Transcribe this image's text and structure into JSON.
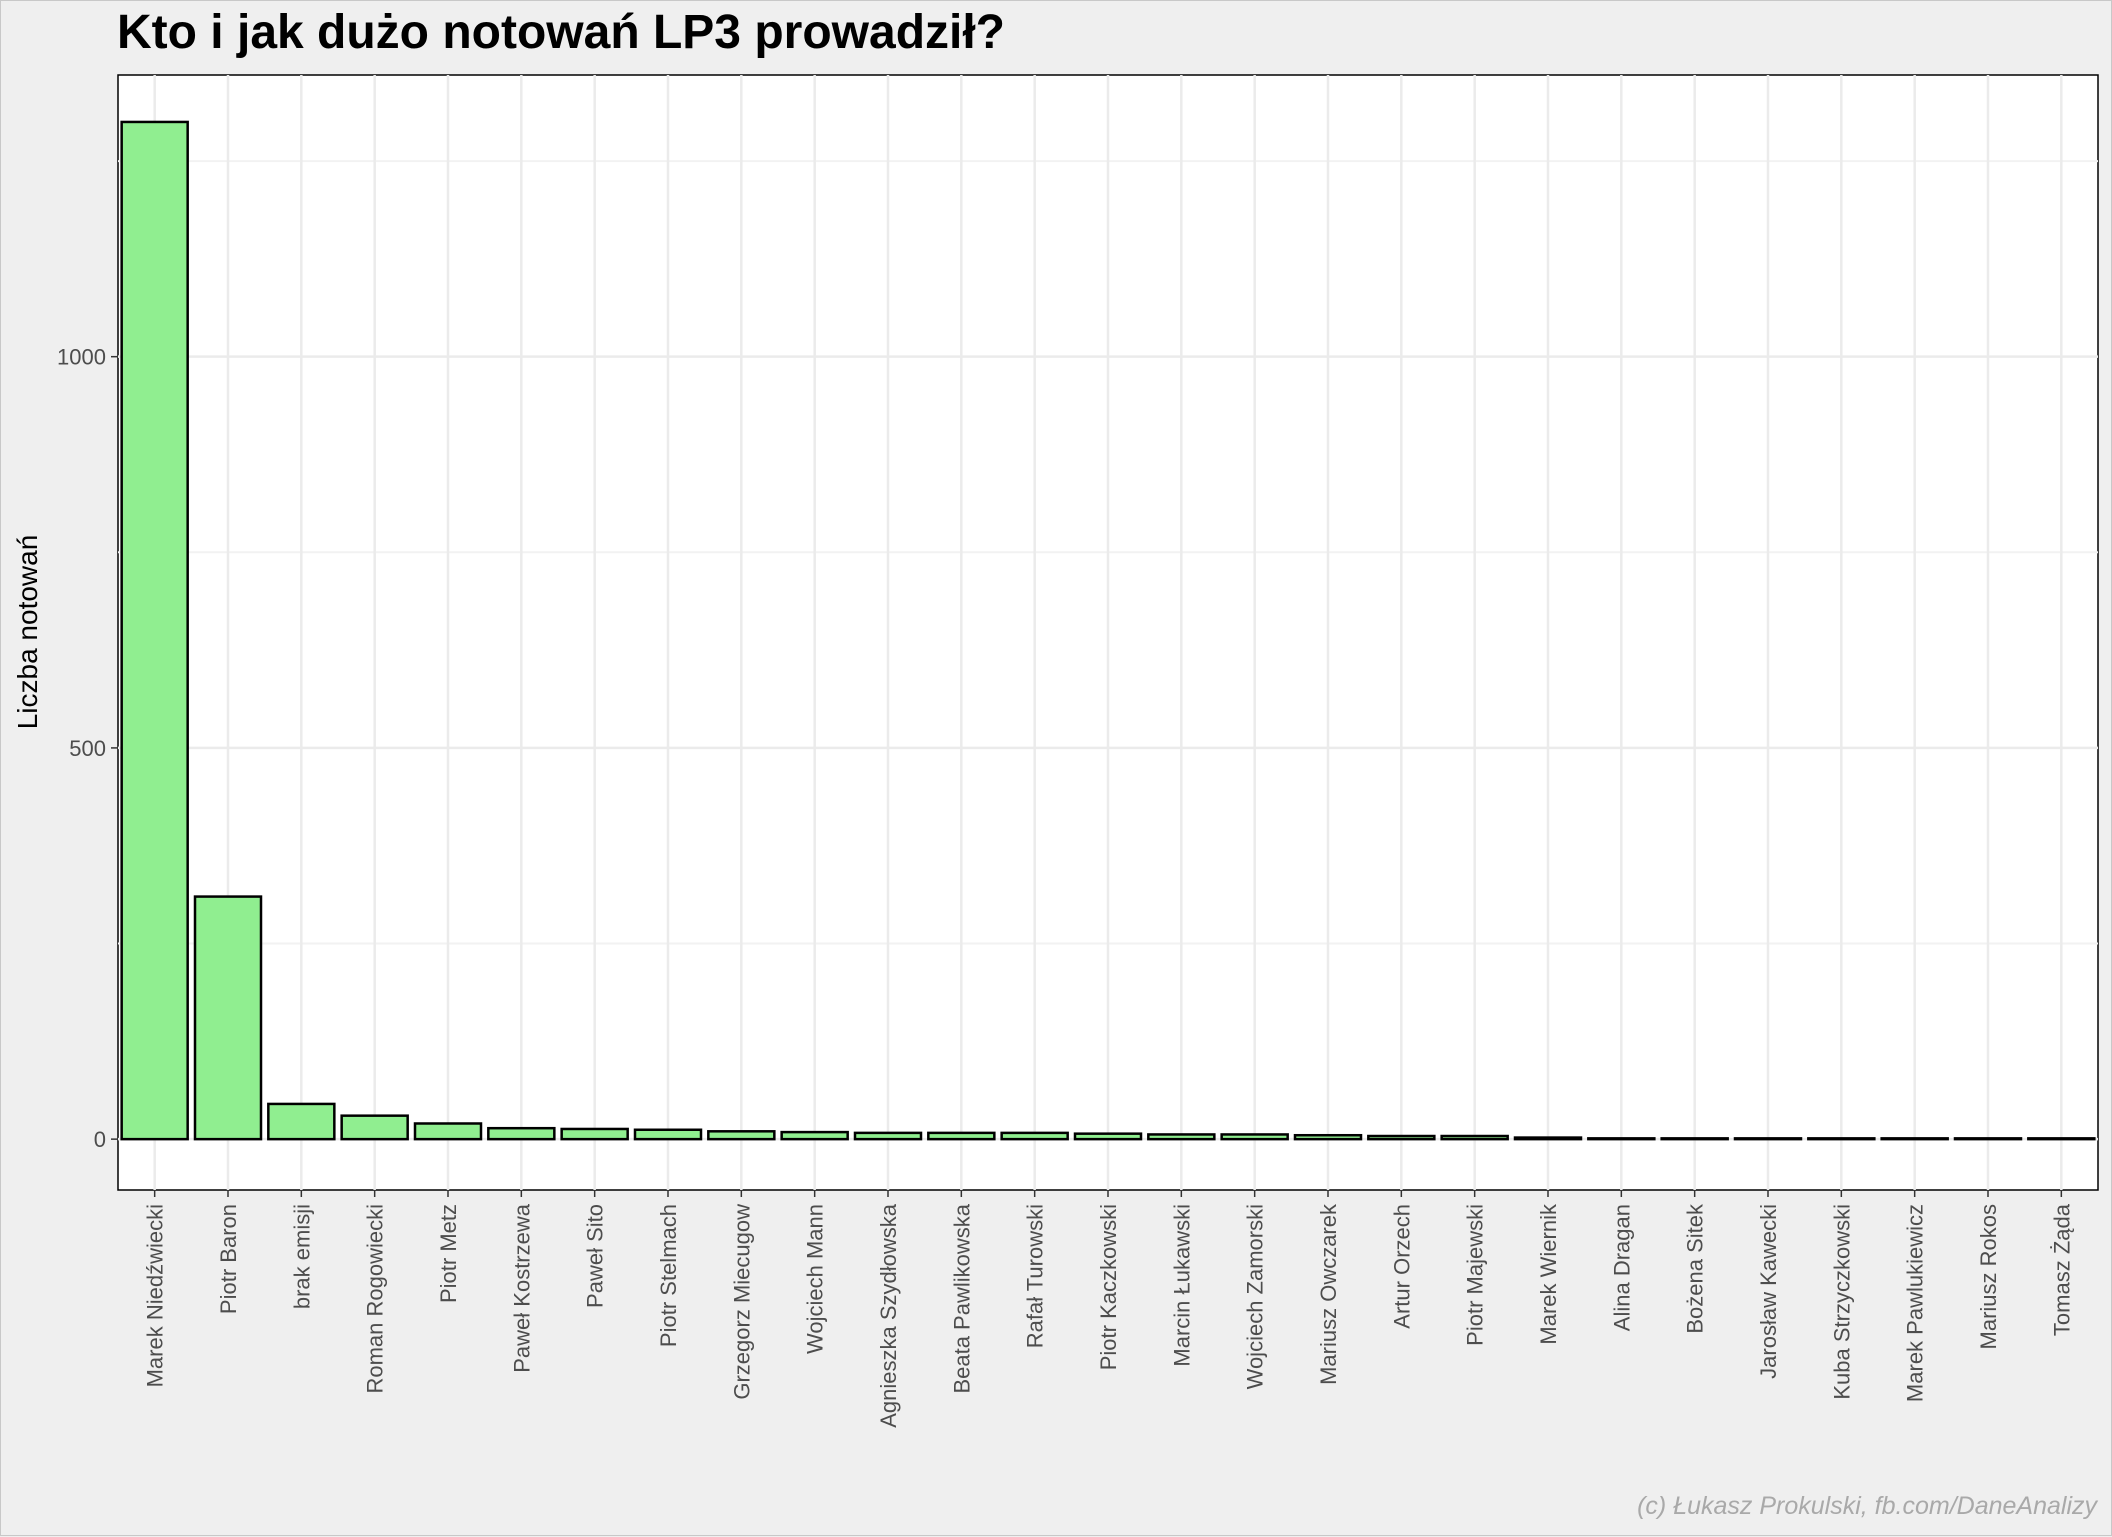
{
  "chart_data": {
    "type": "bar",
    "title": "Kto i jak dużo notowań LP3 prowadził?",
    "xlabel": "",
    "ylabel": "Liczba notowań",
    "ylim": [
      -65,
      1360
    ],
    "yticks": [
      0,
      500,
      1000
    ],
    "categories": [
      "Marek Niedźwiecki",
      "Piotr Baron",
      "brak emisji",
      "Roman Rogowiecki",
      "Piotr Metz",
      "Paweł Kostrzewa",
      "Paweł Sito",
      "Piotr Stelmach",
      "Grzegorz Miecugow",
      "Wojciech Mann",
      "Agnieszka Szydłowska",
      "Beata Pawlikowska",
      "Rafał Turowski",
      "Piotr Kaczkowski",
      "Marcin Łukawski",
      "Wojciech Zamorski",
      "Mariusz Owczarek",
      "Artur Orzech",
      "Piotr Majewski",
      "Marek Wiernik",
      "Alina Dragan",
      "Bożena Sitek",
      "Jarosław Kawecki",
      "Kuba Strzyczkowski",
      "Marek Pawlukiewicz",
      "Mariusz Rokos",
      "Tomasz Żąda"
    ],
    "values": [
      1300,
      310,
      45,
      30,
      20,
      14,
      13,
      12,
      10,
      9,
      8,
      8,
      8,
      7,
      6,
      6,
      5,
      4,
      4,
      2,
      1,
      1,
      1,
      1,
      1,
      1,
      1
    ],
    "bar_fill": "#90ee90",
    "bar_stroke": "#000000",
    "grid": true,
    "legend": "none"
  },
  "caption": "(c) Łukasz Prokulski, fb.com/DaneAnalizy"
}
